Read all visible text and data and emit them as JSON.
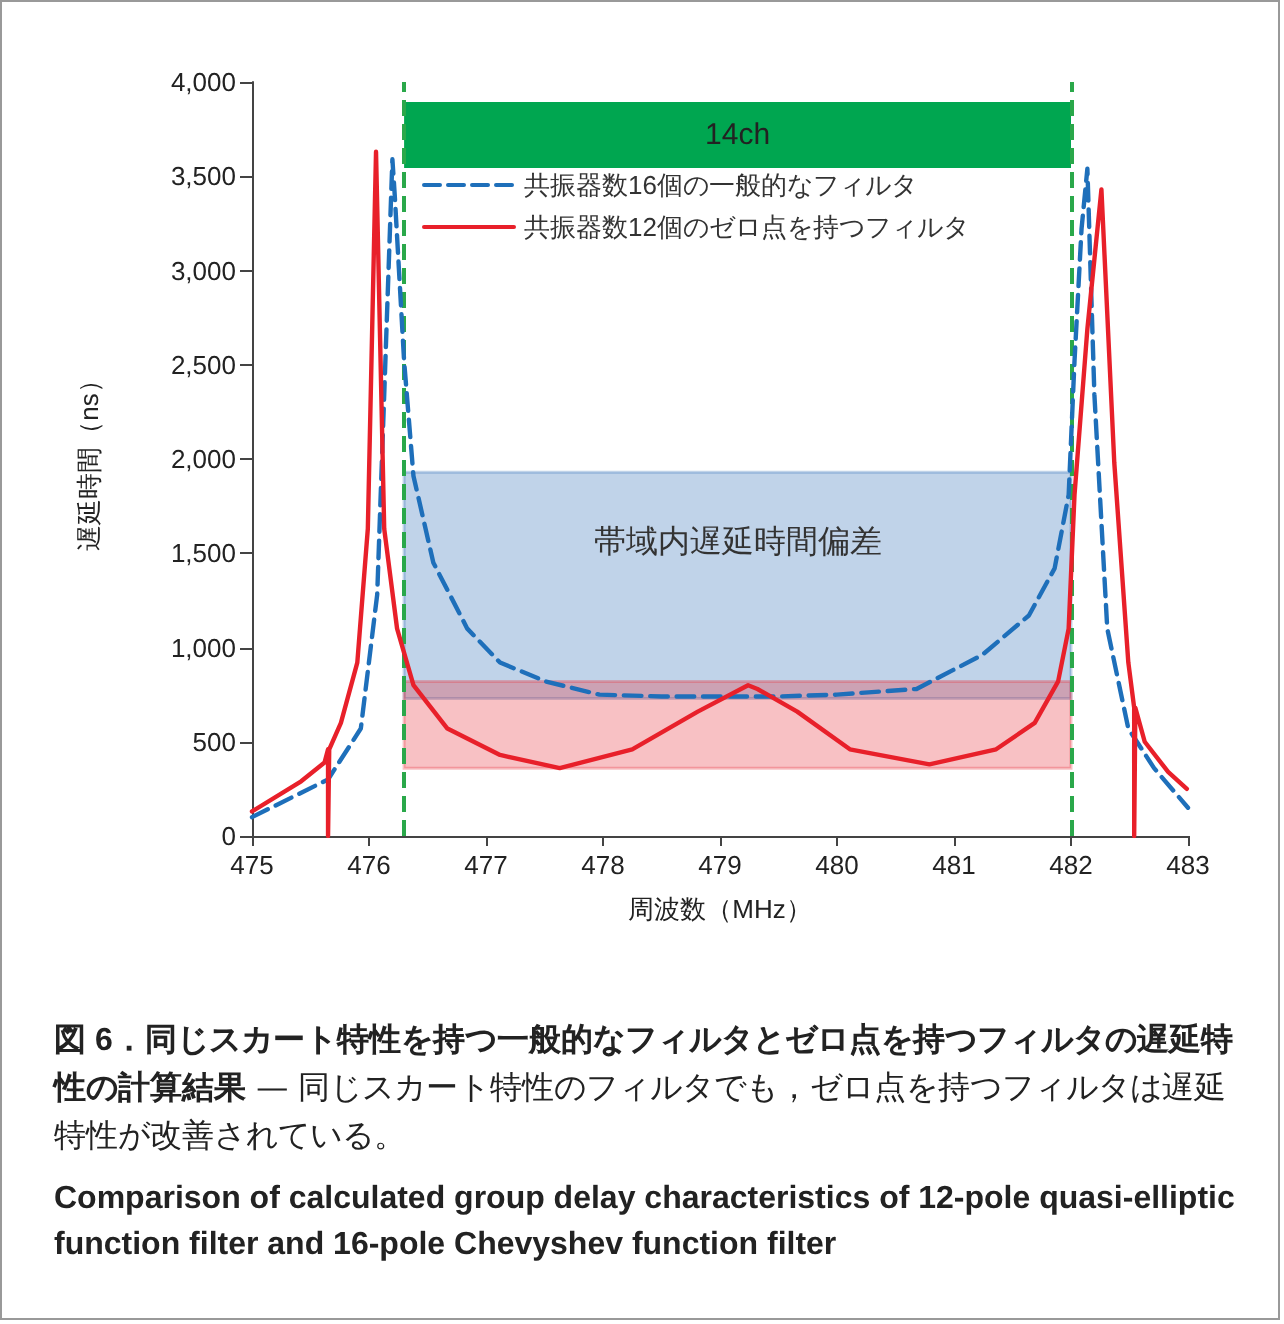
{
  "chart_data": {
    "type": "line",
    "xlabel": "周波数（MHz）",
    "ylabel": "遅延時間（ns）",
    "xlim": [
      475,
      483
    ],
    "xticks": [
      475,
      476,
      477,
      478,
      479,
      480,
      481,
      482,
      483
    ],
    "ylim": [
      0,
      4000
    ],
    "yticks": [
      0,
      500,
      {
        "value": 1000,
        "label": "1,000"
      },
      {
        "value": 1500,
        "label": "1,500"
      },
      {
        "value": 2000,
        "label": "2,000"
      },
      {
        "value": 2500,
        "label": "2,500"
      },
      {
        "value": 3000,
        "label": "3,000"
      },
      {
        "value": 3500,
        "label": "3,500"
      },
      {
        "value": 4000,
        "label": "4,000"
      }
    ],
    "grid": false,
    "legend": "top left",
    "marker": "none",
    "series": [
      {
        "name": "共振器数16個の一般的なフィルタ",
        "color": "#1e6fba",
        "line_style": "dashed",
        "x": [
          475,
          475.65,
          475.93,
          476.07,
          476.13,
          476.2,
          476.22,
          476.3,
          476.38,
          476.55,
          476.84,
          477.12,
          477.51,
          477.97,
          478.5,
          479,
          479.5,
          480,
          480.68,
          481.24,
          481.64,
          481.86,
          481.98,
          482.03,
          482.09,
          482.14,
          482.2,
          482.31,
          482.49,
          482.71,
          483
        ],
        "values": [
          100,
          300,
          570,
          1280,
          2340,
          3590,
          3400,
          2520,
          1910,
          1450,
          1100,
          920,
          820,
          750,
          740,
          740,
          740,
          750,
          780,
          960,
          1170,
          1420,
          1810,
          2520,
          3220,
          3540,
          2340,
          1100,
          570,
          360,
          150
        ]
      },
      {
        "name": "共振器数12個のゼロ点を持つフィルタ",
        "color": "#e8202a",
        "line_style": "solid",
        "x": [
          475,
          475.42,
          475.62,
          475.65,
          475.65,
          475.66,
          475.76,
          475.9,
          475.99,
          476.06,
          476.13,
          476.24,
          476.38,
          476.67,
          477.12,
          477.63,
          478.25,
          478.81,
          479.24,
          479.32,
          479.66,
          480.11,
          480.79,
          481.36,
          481.69,
          481.89,
          481.98,
          482.03,
          482.14,
          482.26,
          482.37,
          482.49,
          482.54,
          482.54,
          482.55,
          482.63,
          482.83,
          482.99
        ],
        "values": [
          130,
          290,
          390,
          460,
          0,
          460,
          600,
          920,
          1630,
          3630,
          1630,
          1100,
          800,
          570,
          430,
          360,
          460,
          660,
          800,
          780,
          660,
          460,
          380,
          460,
          600,
          820,
          1100,
          1810,
          2690,
          3430,
          1980,
          920,
          680,
          0,
          680,
          500,
          340,
          250
        ]
      }
    ],
    "ref_lines": [
      {
        "axis": "x",
        "value": 476.3,
        "color": "#2aa84a",
        "line_style": "dashed"
      },
      {
        "axis": "x",
        "value": 482.0,
        "color": "#2aa84a",
        "line_style": "dashed"
      }
    ],
    "bands": [
      {
        "axis": "x",
        "from": 476.3,
        "to": 482.0,
        "label": "14ch",
        "color": "#00a650"
      },
      {
        "axis": "y",
        "from": 730,
        "to": 1930,
        "label": "帯域内遅延時間偏差",
        "color": "#2f6db5"
      },
      {
        "axis": "y",
        "from": 360,
        "to": 820,
        "color": "#e8333a"
      }
    ],
    "annotations": [
      "図 6．同じスカート特性を持つ一般的なフィルタとゼロ点を持つフィルタの遅延特性の計算結果",
      "— 同じスカート特性のフィルタでも，ゼロ点を持つフィルタは遅延特性が改善されている。",
      "Comparison of calculated group delay characteristics of 12-pole quasi-elliptic function filter and 16-pole Chevyshev function filter"
    ]
  }
}
